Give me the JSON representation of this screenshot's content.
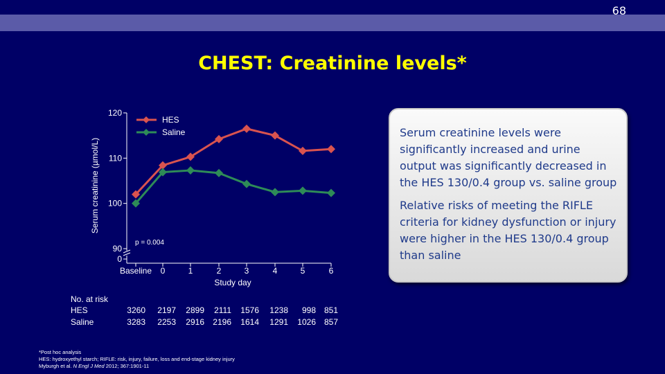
{
  "slide_number": "68",
  "title": "CHEST: Creatinine levels*",
  "info_box": {
    "paragraph1": "Serum creatinine levels were significantly increased and urine output was significantly decreased in the HES 130/0.4 group vs. saline group",
    "paragraph2": "Relative risks of meeting the RIFLE criteria for kidney dysfunction or injury were higher in the HES 130/0.4 group than saline"
  },
  "chart_data": {
    "type": "line",
    "x": [
      "Baseline",
      "0",
      "1",
      "2",
      "3",
      "4",
      "5",
      "6"
    ],
    "series": [
      {
        "name": "HES",
        "color": "#d9534f",
        "values": [
          102,
          108.4,
          110.3,
          114.2,
          116.5,
          115,
          111.6,
          112
        ]
      },
      {
        "name": "Saline",
        "color": "#2e8b57",
        "values": [
          100,
          106.9,
          107.3,
          106.7,
          104.3,
          102.5,
          102.8,
          102.3
        ]
      }
    ],
    "xlabel": "Study day",
    "ylabel": "Serum creatinine  (µmol/L)",
    "yticks": [
      "0",
      "90",
      "100",
      "110",
      "120"
    ],
    "ylim": [
      90,
      120
    ],
    "axis_break": true,
    "annotation": "p = 0.004",
    "legend_position": "top-left"
  },
  "at_risk": {
    "header": "No. at risk",
    "rows": [
      {
        "label": "HES",
        "values": [
          "3260",
          "2197",
          "2899",
          "2111",
          "1576",
          "1238",
          "998",
          "851"
        ]
      },
      {
        "label": "Saline",
        "values": [
          "3283",
          "2253",
          "2916",
          "2196",
          "1614",
          "1291",
          "1026",
          "857"
        ]
      }
    ]
  },
  "footnotes": {
    "line1": "*Post hoc analysis",
    "line2": "HES: hydroxyethyl starch; RIFLE: risk, injury, failure, loss and end-stage kidney injury",
    "line3_prefix": "Myburgh et al. ",
    "line3_journal": "N Engl J Med",
    "line3_suffix": " 2012; 367:1901-11"
  }
}
